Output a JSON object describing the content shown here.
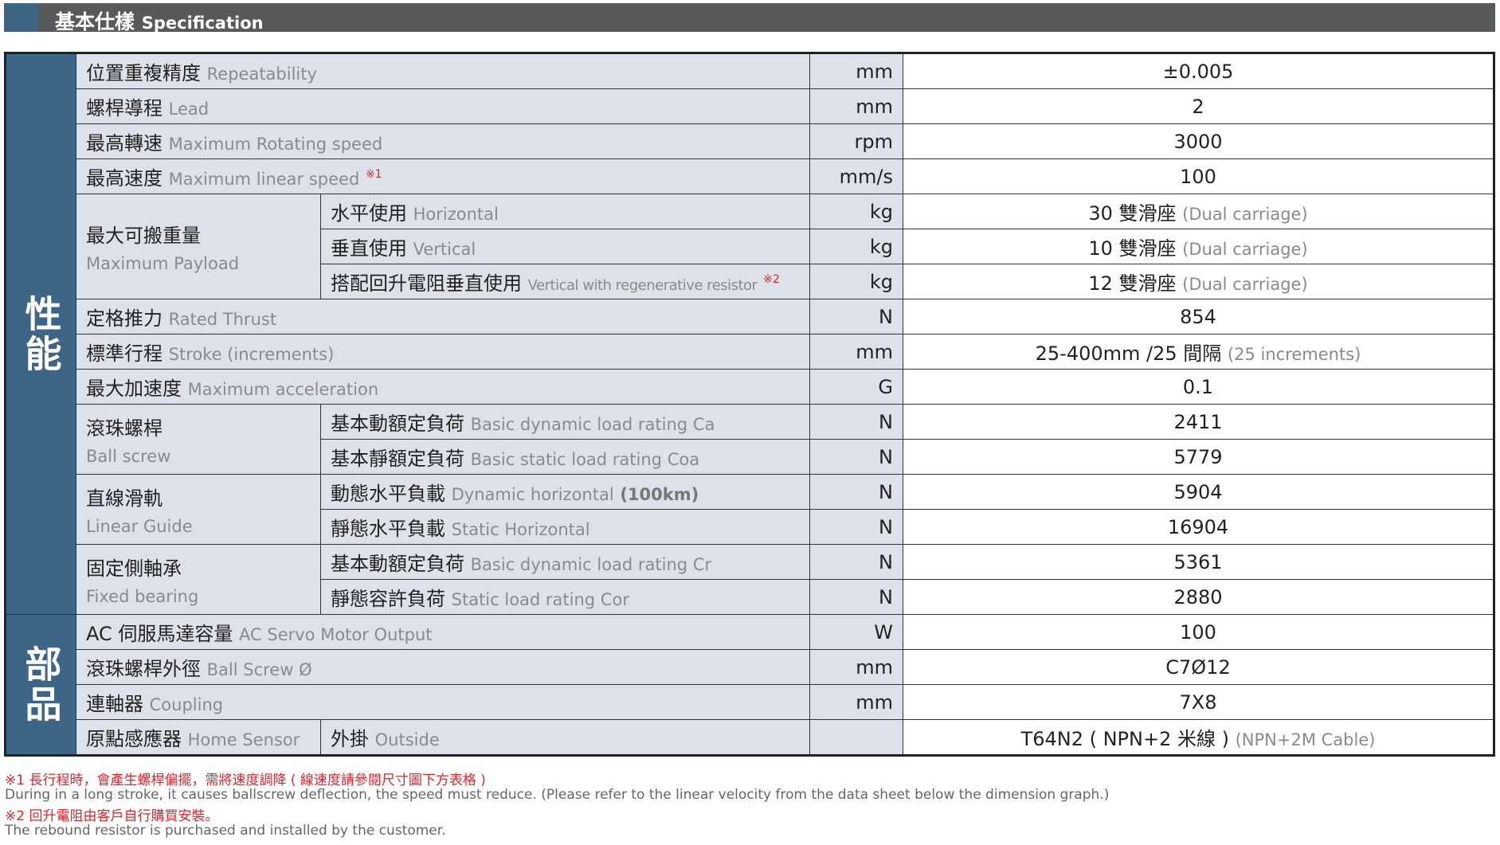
{
  "header": {
    "zh": "基本仕樣",
    "en": "Specification"
  },
  "sections": {
    "performance": "性能",
    "parts": "部品"
  },
  "rows": [
    {
      "zh": "位置重複精度",
      "en": "Repeatability",
      "unit": "mm",
      "value": "±0.005"
    },
    {
      "zh": "螺桿導程",
      "en": "Lead",
      "unit": "mm",
      "value": "2"
    },
    {
      "zh": "最高轉速",
      "en": "Maximum Rotating speed",
      "unit": "rpm",
      "value": "3000"
    },
    {
      "zh": "最高速度",
      "en": "Maximum linear speed",
      "note": "※1",
      "unit": "mm/s",
      "value": "100"
    },
    {
      "group_zh": "最大可搬重量",
      "group_en": "Maximum Payload",
      "zh": "水平使用",
      "en": "Horizontal",
      "unit": "kg",
      "value": "30 雙滑座",
      "value_en": "(Dual carriage)"
    },
    {
      "zh": "垂直使用",
      "en": "Vertical",
      "unit": "kg",
      "value": "10 雙滑座",
      "value_en": "(Dual carriage)"
    },
    {
      "zh": "搭配回升電阻垂直使用",
      "en": "Vertical with regenerative resistor",
      "note": "※2",
      "unit": "kg",
      "value": "12 雙滑座",
      "value_en": "(Dual carriage)"
    },
    {
      "zh": "定格推力",
      "en": "Rated Thrust",
      "unit": "N",
      "value": "854"
    },
    {
      "zh": "標準行程",
      "en": "Stroke (increments)",
      "unit": "mm",
      "value": "25-400mm /25 間隔",
      "value_en": "(25 increments)"
    },
    {
      "zh": "最大加速度",
      "en": "Maximum acceleration",
      "unit": "G",
      "value": "0.1"
    },
    {
      "group_zh": "滾珠螺桿",
      "group_en": "Ball screw",
      "zh": "基本動額定負荷",
      "en": "Basic dynamic load rating Ca",
      "unit": "N",
      "value": "2411"
    },
    {
      "zh": "基本靜額定負荷",
      "en": "Basic static load rating Coa",
      "unit": "N",
      "value": "5779"
    },
    {
      "group_zh": "直線滑軌",
      "group_en": "Linear Guide",
      "zh": "動態水平負載",
      "en": "Dynamic horizontal",
      "en_b": "(100km)",
      "unit": "N",
      "value": "5904"
    },
    {
      "zh": "靜態水平負載",
      "en": "Static Horizontal",
      "unit": "N",
      "value": "16904"
    },
    {
      "group_zh": "固定側軸承",
      "group_en": "Fixed bearing",
      "zh": "基本動額定負荷",
      "en": "Basic dynamic load rating Cr",
      "unit": "N",
      "value": "5361"
    },
    {
      "zh": "靜態容許負荷",
      "en": "Static load rating Cor",
      "unit": "N",
      "value": "2880"
    },
    {
      "zh": "AC 伺服馬達容量",
      "en": "AC Servo Motor Output",
      "unit": "W",
      "value": "100"
    },
    {
      "zh": "滾珠螺桿外徑",
      "en": "Ball Screw Ø",
      "unit": "mm",
      "value": "C7Ø12"
    },
    {
      "zh": "連軸器",
      "en": "Coupling",
      "unit": "mm",
      "value": "7X8"
    },
    {
      "zh": "原點感應器",
      "en": "Home Sensor",
      "zh2": "外掛",
      "en2": "Outside",
      "unit": "",
      "value": "T64N2 ( NPN+2 米線 )",
      "value_en": "(NPN+2M Cable)"
    }
  ],
  "footnotes": [
    "※1 長行程時，會產生螺桿偏擺，需將速度調降 ( 線速度請參閱尺寸圖下方表格 )",
    "During in a long stroke, it causes ballscrew deflection, the speed must reduce. (Please refer to the linear velocity from the data sheet below the dimension graph.)",
    "※2 回升電阻由客戶自行購買安裝。",
    "The rebound resistor is purchased and installed by the customer."
  ],
  "colors": {
    "section": "#3d6585",
    "header": "#58595b",
    "row": "#dde2ea",
    "note": "#e0242b"
  }
}
